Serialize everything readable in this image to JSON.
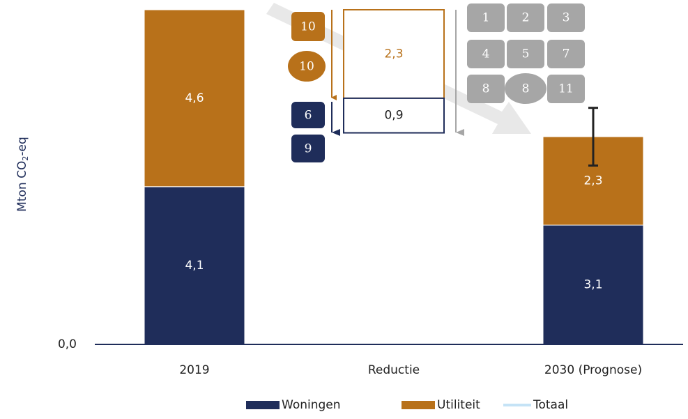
{
  "chart_data": {
    "type": "waterfall",
    "y_label": "Mton CO",
    "y_label_sub": "2",
    "y_label_suffix": "-eq",
    "categories": [
      "2019",
      "Reductie",
      "2030 (Prognose)"
    ],
    "measures": [
      "absolute",
      "relative",
      "absolute"
    ],
    "series": [
      {
        "name": "Woningen",
        "color": "#1f2d5a",
        "values": [
          4.1,
          0.9,
          3.1
        ],
        "value_labels": [
          "4,1",
          "0,9",
          "3,1"
        ]
      },
      {
        "name": "Utiliteit",
        "color": "#b8711a",
        "values": [
          4.6,
          2.3,
          2.3
        ],
        "value_labels": [
          "4,6",
          "2,3",
          "2,3"
        ]
      },
      {
        "name": "Totaal",
        "color": "#c5e3f6",
        "values": [
          null,
          null,
          null
        ]
      }
    ],
    "errors": [
      null,
      null,
      0.75
    ],
    "ylim": [
      0,
      8.7
    ],
    "yticks": [
      {
        "value": 0,
        "label": "0,0"
      }
    ],
    "annotations": {
      "utiliteit_badges": [
        "10",
        "10"
      ],
      "woningen_badges": [
        "6",
        "9"
      ],
      "total_badges": [
        "1",
        "2",
        "3",
        "4",
        "5",
        "7",
        "8",
        "8",
        "11"
      ]
    }
  }
}
